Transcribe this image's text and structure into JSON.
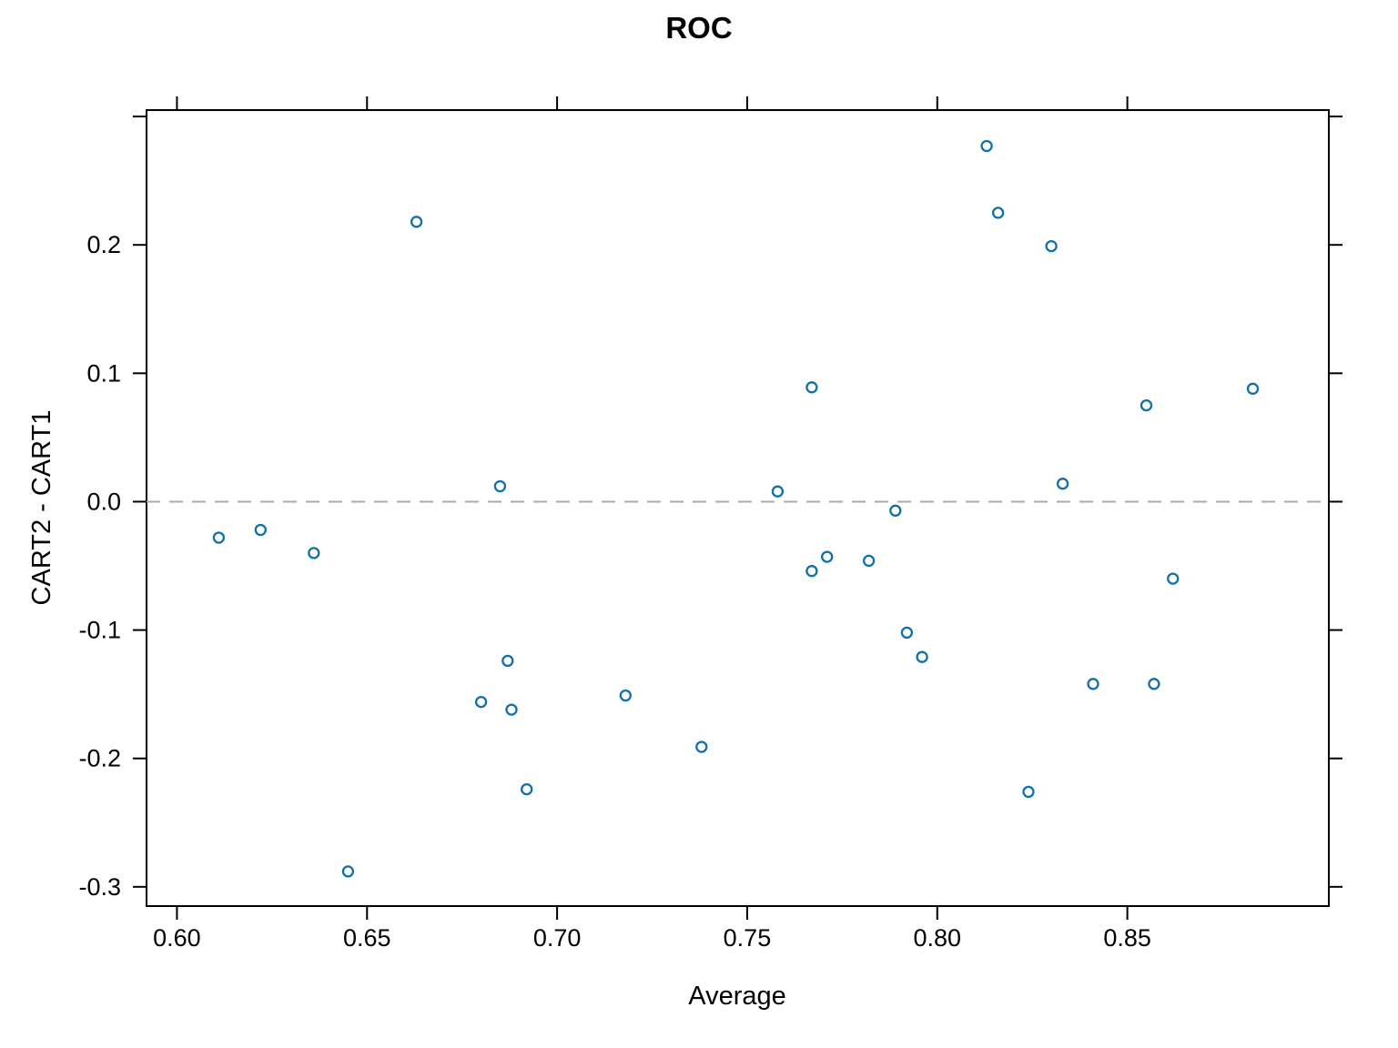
{
  "chart_data": {
    "type": "scatter",
    "title": "ROC",
    "xlabel": "Average",
    "ylabel": "CART2 - CART1",
    "grid": "off",
    "legend": "none",
    "marker": {
      "shape": "open-circle",
      "color": "#1070A8"
    },
    "reference_line": {
      "y": 0,
      "style": "dashed",
      "color": "#ABABAB"
    },
    "xlim": [
      0.592,
      0.903
    ],
    "ylim": [
      -0.315,
      0.305
    ],
    "mirror_ticks_top_right": true,
    "xticks": [
      {
        "value": 0.6,
        "label": "0.60"
      },
      {
        "value": 0.65,
        "label": "0.65"
      },
      {
        "value": 0.7,
        "label": "0.70"
      },
      {
        "value": 0.75,
        "label": "0.75"
      },
      {
        "value": 0.8,
        "label": "0.80"
      },
      {
        "value": 0.85,
        "label": "0.85"
      }
    ],
    "yticks": [
      {
        "value": 0.3,
        "label": ""
      },
      {
        "value": 0.2,
        "label": "0.2"
      },
      {
        "value": 0.1,
        "label": "0.1"
      },
      {
        "value": 0.0,
        "label": "0.0"
      },
      {
        "value": -0.1,
        "label": "-0.1"
      },
      {
        "value": -0.2,
        "label": "-0.2"
      },
      {
        "value": -0.3,
        "label": "-0.3"
      }
    ],
    "points": [
      [
        0.611,
        -0.028
      ],
      [
        0.622,
        -0.022
      ],
      [
        0.636,
        -0.04
      ],
      [
        0.645,
        -0.288
      ],
      [
        0.663,
        0.218
      ],
      [
        0.68,
        -0.156
      ],
      [
        0.685,
        0.012
      ],
      [
        0.687,
        -0.124
      ],
      [
        0.688,
        -0.162
      ],
      [
        0.692,
        -0.224
      ],
      [
        0.718,
        -0.151
      ],
      [
        0.738,
        -0.191
      ],
      [
        0.758,
        0.008
      ],
      [
        0.767,
        0.089
      ],
      [
        0.767,
        -0.054
      ],
      [
        0.771,
        -0.043
      ],
      [
        0.782,
        -0.046
      ],
      [
        0.789,
        -0.007
      ],
      [
        0.792,
        -0.102
      ],
      [
        0.796,
        -0.121
      ],
      [
        0.813,
        0.277
      ],
      [
        0.816,
        0.225
      ],
      [
        0.824,
        -0.226
      ],
      [
        0.83,
        0.199
      ],
      [
        0.833,
        0.014
      ],
      [
        0.841,
        -0.142
      ],
      [
        0.855,
        0.075
      ],
      [
        0.857,
        -0.142
      ],
      [
        0.862,
        -0.06
      ],
      [
        0.883,
        0.088
      ]
    ]
  }
}
